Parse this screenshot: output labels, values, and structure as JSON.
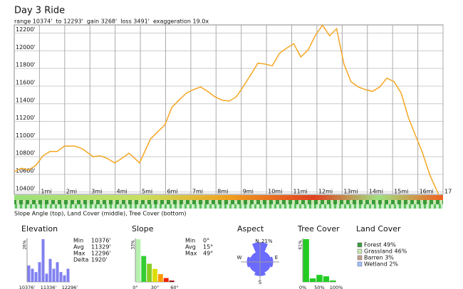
{
  "header": {
    "title": "Day 3 Ride",
    "subtitle": "range 10374'  to 12293'  gain 3268'  loss 3491'  exaggeration 19.0x"
  },
  "chart_data": {
    "type": "line",
    "color": "#f5a623",
    "x": [
      0,
      0.28,
      0.57,
      0.85,
      1.14,
      1.42,
      1.7,
      1.99,
      2.41,
      2.7,
      3.13,
      3.41,
      3.69,
      3.98,
      4.26,
      4.55,
      4.97,
      5.4,
      5.68,
      5.97,
      6.25,
      6.53,
      6.82,
      7.1,
      7.39,
      7.67,
      7.95,
      8.24,
      8.52,
      8.81,
      9.09,
      9.38,
      9.66,
      9.94,
      10.23,
      10.51,
      10.8,
      11.08,
      11.36,
      11.65,
      11.93,
      12.22,
      12.5,
      12.78,
      13.07,
      13.35,
      13.64,
      13.92,
      14.2,
      14.49,
      14.77,
      15.06,
      15.34,
      15.63,
      15.91,
      16.19,
      16.48,
      16.82
    ],
    "values": [
      10630,
      10670,
      10650,
      10700,
      10810,
      10860,
      10860,
      10920,
      10920,
      10890,
      10800,
      10810,
      10780,
      10730,
      10780,
      10840,
      10730,
      11000,
      11080,
      11160,
      11360,
      11440,
      11520,
      11560,
      11590,
      11540,
      11480,
      11440,
      11430,
      11480,
      11600,
      11730,
      11860,
      11850,
      11830,
      11970,
      12030,
      12080,
      11930,
      12010,
      12170,
      12290,
      12170,
      12250,
      11850,
      11650,
      11590,
      11560,
      11540,
      11590,
      11690,
      11650,
      11520,
      11240,
      11040,
      10840,
      10590,
      10374
    ],
    "xlim": [
      0,
      17
    ],
    "ylim": [
      10374,
      12293
    ],
    "xticks": [
      {
        "value": 1,
        "label": "1mi"
      },
      {
        "value": 2,
        "label": "2mi"
      },
      {
        "value": 3,
        "label": "3mi"
      },
      {
        "value": 4,
        "label": "4mi"
      },
      {
        "value": 5,
        "label": "5mi"
      },
      {
        "value": 6,
        "label": "6mi"
      },
      {
        "value": 7,
        "label": "7mi"
      },
      {
        "value": 8,
        "label": "8mi"
      },
      {
        "value": 9,
        "label": "9mi"
      },
      {
        "value": 10,
        "label": "10mi"
      },
      {
        "value": 11,
        "label": "11mi"
      },
      {
        "value": 12,
        "label": "12mi"
      },
      {
        "value": 13,
        "label": "13mi"
      },
      {
        "value": 14,
        "label": "14mi"
      },
      {
        "value": 15,
        "label": "15mi"
      },
      {
        "value": 16,
        "label": "16mi"
      },
      17
    ],
    "yticks": [
      {
        "value": 10400,
        "label": "10400'"
      },
      {
        "value": 10600,
        "label": "10600'"
      },
      {
        "value": 10800,
        "label": "10800'"
      },
      {
        "value": 11000,
        "label": "11000'"
      },
      {
        "value": 11200,
        "label": "11200'"
      },
      {
        "value": 11400,
        "label": "11400'"
      },
      {
        "value": 11600,
        "label": "11600'"
      },
      {
        "value": 11800,
        "label": "11800'"
      },
      {
        "value": 12000,
        "label": "12000'"
      },
      {
        "value": 12200,
        "label": "12200'"
      }
    ],
    "grid": true
  },
  "strip_caption": "Slope Angle (top), Land Cover (middle), Tree Cover (bottom)",
  "panels": {
    "elevation": {
      "title": "Elevation",
      "max": {
        "value": 26,
        "label": "26%"
      },
      "values": [
        10,
        8,
        6,
        12,
        26,
        5,
        14,
        8,
        12,
        6,
        4,
        8
      ],
      "color": "#8080f0",
      "xlabels": [
        "10376'",
        "11336'",
        "12296'"
      ],
      "stats": [
        [
          "Min",
          "10376'"
        ],
        [
          "Avg",
          "11329'"
        ],
        [
          "Max",
          "12296'"
        ],
        [
          "Delta",
          "1920'"
        ]
      ]
    },
    "slope": {
      "title": "Slope",
      "max": {
        "value": 33,
        "label": "33%"
      },
      "values": [
        33,
        20,
        14,
        10,
        6,
        3,
        1
      ],
      "colors": [
        "#b8f0b0",
        "#33cc33",
        "#88cc22",
        "#dddd00",
        "#ff9900",
        "#ee2200",
        "#990000"
      ],
      "xlabels": [
        "0°",
        "30°",
        "60°"
      ],
      "stats": [
        [
          "Min",
          "0°"
        ],
        [
          "Avg",
          "15°"
        ],
        [
          "Max",
          "49°"
        ]
      ]
    },
    "aspect": {
      "title": "Aspect",
      "max": {
        "value": 21,
        "label": "21%"
      },
      "directions": [
        "N",
        "E",
        "S",
        "W"
      ],
      "values": [
        21,
        12,
        14,
        12,
        15,
        12,
        14,
        11
      ],
      "color": "#6b6bff"
    },
    "tree": {
      "title": "Tree Cover",
      "max": {
        "value": 61,
        "label": "61%"
      },
      "values": [
        61,
        5,
        10,
        8,
        2
      ],
      "color": "#22cc22",
      "xlabels": [
        "0%",
        "50%",
        "100%"
      ]
    },
    "land": {
      "title": "Land Cover",
      "items": [
        {
          "label": "Forest 49%",
          "color": "#3a9a3a"
        },
        {
          "label": "Grassland 46%",
          "color": "#c9e6b0"
        },
        {
          "label": "Barren 3%",
          "color": "#c0a090"
        },
        {
          "label": "Wetland 2%",
          "color": "#a0c0ff"
        }
      ]
    }
  }
}
